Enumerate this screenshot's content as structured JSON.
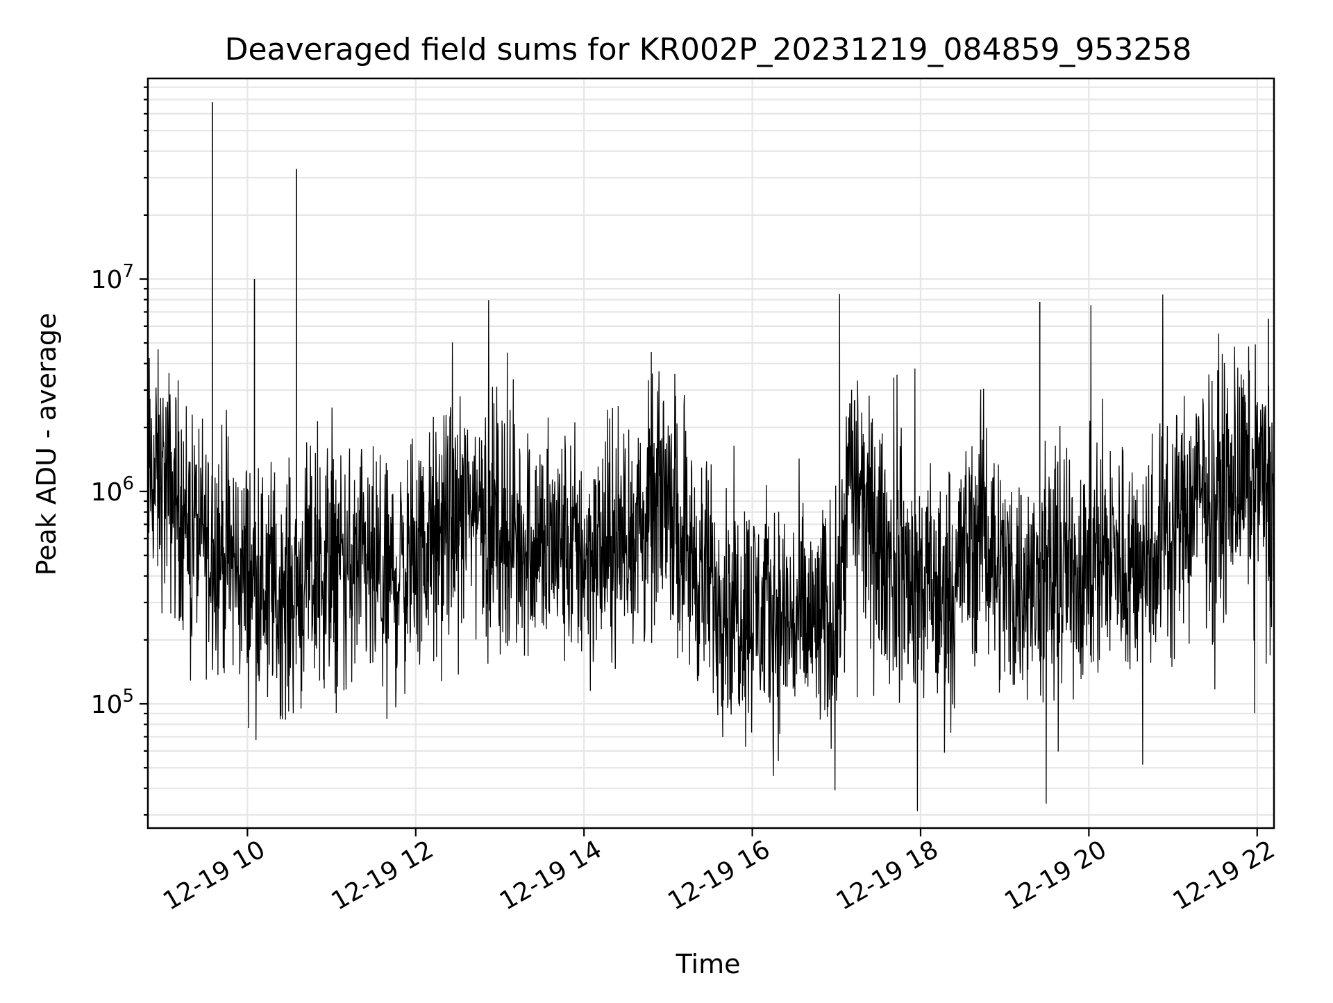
{
  "chart_data": {
    "type": "line",
    "title": "Deaveraged field sums for KR002P_20231219_084859_953258",
    "xlabel": "Time",
    "ylabel": "Peak ADU - average",
    "yscale": "log",
    "xlim": [
      "2023-12-19T08:49",
      "2023-12-19T22:12"
    ],
    "ylim": [
      26000,
      88000000
    ],
    "grid": true,
    "x_ticks": [
      {
        "at": "2023-12-19T10:00",
        "label": "12-19 10"
      },
      {
        "at": "2023-12-19T12:00",
        "label": "12-19 12"
      },
      {
        "at": "2023-12-19T14:00",
        "label": "12-19 14"
      },
      {
        "at": "2023-12-19T16:00",
        "label": "12-19 16"
      },
      {
        "at": "2023-12-19T18:00",
        "label": "12-19 18"
      },
      {
        "at": "2023-12-19T20:00",
        "label": "12-19 20"
      },
      {
        "at": "2023-12-19T22:00",
        "label": "12-19 22"
      }
    ],
    "y_ticks": [
      {
        "value": 100000,
        "base": "10",
        "exp": "5"
      },
      {
        "value": 1000000,
        "base": "10",
        "exp": "6"
      },
      {
        "value": 10000000,
        "base": "10",
        "exp": "7"
      }
    ],
    "line_color": "#000000",
    "series": [
      {
        "x": [
          "2023-12-19T08:49",
          "2023-12-19T09:00",
          "2023-12-19T09:10",
          "2023-12-19T09:20",
          "2023-12-19T09:30",
          "2023-12-19T09:40",
          "2023-12-19T09:50",
          "2023-12-19T10:00",
          "2023-12-19T10:15",
          "2023-12-19T10:30",
          "2023-12-19T10:45",
          "2023-12-19T11:00",
          "2023-12-19T11:15",
          "2023-12-19T11:30",
          "2023-12-19T11:45",
          "2023-12-19T12:00",
          "2023-12-19T12:15",
          "2023-12-19T12:30",
          "2023-12-19T12:45",
          "2023-12-19T13:00",
          "2023-12-19T13:15",
          "2023-12-19T13:30",
          "2023-12-19T13:45",
          "2023-12-19T14:00",
          "2023-12-19T14:15",
          "2023-12-19T14:30",
          "2023-12-19T14:45",
          "2023-12-19T15:00",
          "2023-12-19T15:15",
          "2023-12-19T15:30",
          "2023-12-19T15:45",
          "2023-12-19T16:00",
          "2023-12-19T16:15",
          "2023-12-19T16:30",
          "2023-12-19T16:45",
          "2023-12-19T17:00",
          "2023-12-19T17:10",
          "2023-12-19T17:20",
          "2023-12-19T17:40",
          "2023-12-19T18:00",
          "2023-12-19T18:15",
          "2023-12-19T18:30",
          "2023-12-19T18:45",
          "2023-12-19T19:00",
          "2023-12-19T19:15",
          "2023-12-19T19:30",
          "2023-12-19T19:45",
          "2023-12-19T20:00",
          "2023-12-19T20:15",
          "2023-12-19T20:30",
          "2023-12-19T20:45",
          "2023-12-19T21:00",
          "2023-12-19T21:15",
          "2023-12-19T21:30",
          "2023-12-19T21:45",
          "2023-12-19T22:00",
          "2023-12-19T22:12"
        ],
        "y": [
          1200000,
          1100000,
          900000,
          700000,
          600000,
          550000,
          450000,
          400000,
          350000,
          330000,
          400000,
          450000,
          420000,
          380000,
          400000,
          480000,
          600000,
          750000,
          900000,
          700000,
          600000,
          580000,
          550000,
          500000,
          520000,
          600000,
          700000,
          1100000,
          500000,
          350000,
          300000,
          280000,
          260000,
          240000,
          230000,
          250000,
          1400000,
          700000,
          450000,
          350000,
          300000,
          500000,
          700000,
          400000,
          350000,
          380000,
          420000,
          480000,
          500000,
          450000,
          520000,
          700000,
          900000,
          1000000,
          1100000,
          1200000,
          900000
        ]
      }
    ],
    "annotations": [
      {
        "x": "2023-12-19T09:35",
        "y": 68000000,
        "note": "spike"
      },
      {
        "x": "2023-12-19T10:35",
        "y": 33000000,
        "note": "spike"
      },
      {
        "x": "2023-12-19T10:05",
        "y": 10000000,
        "note": "spike"
      },
      {
        "x": "2023-12-19T19:25",
        "y": 7800000,
        "note": "spike"
      },
      {
        "x": "2023-12-19T22:08",
        "y": 6500000,
        "note": "spike"
      }
    ]
  }
}
